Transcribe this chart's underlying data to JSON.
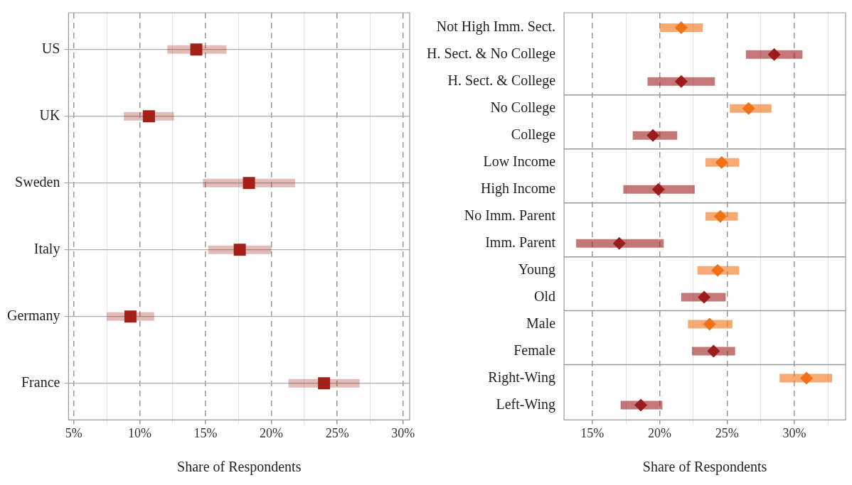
{
  "chart_data": [
    {
      "type": "scatter",
      "orientation": "horizontal",
      "categories": [
        "US",
        "UK",
        "Sweden",
        "Italy",
        "Germany",
        "France"
      ],
      "values": [
        14.3,
        10.7,
        18.3,
        17.6,
        9.3,
        24.0
      ],
      "errors": [
        [
          12.1,
          16.6
        ],
        [
          8.8,
          12.6
        ],
        [
          14.8,
          21.8
        ],
        [
          15.2,
          20.0
        ],
        [
          7.5,
          11.1
        ],
        [
          21.3,
          26.7
        ]
      ],
      "color": "#a31f17",
      "marker": "square",
      "xlabel": "Share of Respondents",
      "xlim": [
        4.6,
        30.5
      ],
      "xticks": [
        {
          "value": 5,
          "label": "5%"
        },
        {
          "value": 7.5,
          "label": null
        },
        {
          "value": 10,
          "label": "10%"
        },
        {
          "value": 12.5,
          "label": null
        },
        {
          "value": 15,
          "label": "15%"
        },
        {
          "value": 17.5,
          "label": null
        },
        {
          "value": 20,
          "label": "20%"
        },
        {
          "value": 22.5,
          "label": null
        },
        {
          "value": 25,
          "label": "25%"
        },
        {
          "value": 27.5,
          "label": null
        },
        {
          "value": 30,
          "label": "30%"
        }
      ],
      "grid": true
    },
    {
      "type": "scatter",
      "orientation": "horizontal",
      "categories": [
        "Not High Imm. Sect.",
        "H. Sect. & No College",
        "H. Sect. & College",
        "No College",
        "College",
        "Low Income",
        "High Income",
        "No Imm. Parent",
        "Imm. Parent",
        "Young",
        "Old",
        "Male",
        "Female",
        "Right-Wing",
        "Left-Wing"
      ],
      "values": [
        21.6,
        28.5,
        21.6,
        26.6,
        19.5,
        24.6,
        19.9,
        24.5,
        17.0,
        24.3,
        23.3,
        23.7,
        24.0,
        30.9,
        18.6
      ],
      "errors": [
        [
          20.0,
          23.2
        ],
        [
          26.4,
          30.6
        ],
        [
          19.1,
          24.1
        ],
        [
          25.2,
          28.3
        ],
        [
          18.0,
          21.3
        ],
        [
          23.4,
          25.9
        ],
        [
          17.3,
          22.6
        ],
        [
          23.4,
          25.8
        ],
        [
          13.8,
          20.3
        ],
        [
          22.8,
          25.9
        ],
        [
          21.6,
          24.9
        ],
        [
          22.1,
          25.4
        ],
        [
          22.4,
          25.6
        ],
        [
          28.9,
          32.8
        ],
        [
          17.1,
          20.2
        ]
      ],
      "colors": [
        "#ee7218",
        "#9b1c1c",
        "#9b1c1c",
        "#ee7218",
        "#9b1c1c",
        "#ee7218",
        "#9b1c1c",
        "#ee7218",
        "#9b1c1c",
        "#ee7218",
        "#9b1c1c",
        "#ee7218",
        "#9b1c1c",
        "#ee7218",
        "#9b1c1c"
      ],
      "marker": "diamond",
      "xlabel": "Share of Respondents",
      "xlim": [
        12.9,
        33.8
      ],
      "xticks": [
        {
          "value": 15,
          "label": "15%"
        },
        {
          "value": 17.5,
          "label": null
        },
        {
          "value": 20,
          "label": "20%"
        },
        {
          "value": 22.5,
          "label": null
        },
        {
          "value": 25,
          "label": "25%"
        },
        {
          "value": 27.5,
          "label": null
        },
        {
          "value": 30,
          "label": "30%"
        },
        {
          "value": 32.5,
          "label": null
        }
      ],
      "grid": "x"
    }
  ]
}
